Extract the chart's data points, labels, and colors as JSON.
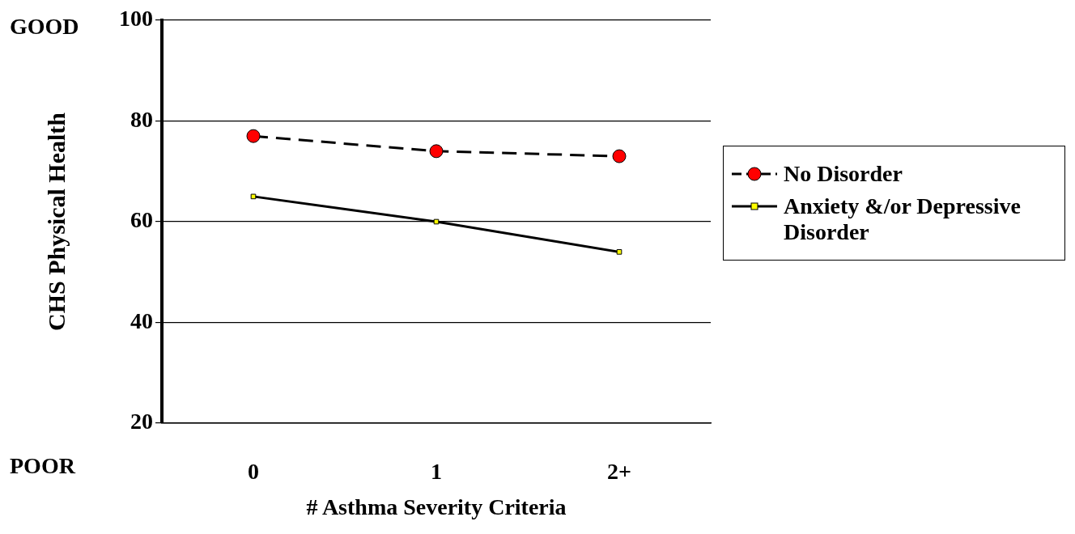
{
  "chart_data": {
    "type": "line",
    "xlabel": "# Asthma Severity Criteria",
    "ylabel": "CHS Physical Health",
    "categories": [
      "0",
      "1",
      "2+"
    ],
    "series": [
      {
        "name": "No Disorder",
        "color": "#ff0000",
        "values": [
          77,
          74,
          73
        ],
        "marker": "circle",
        "line_style": "dashed"
      },
      {
        "name": "Anxiety &/or Depressive Disorder",
        "color": "#ffff00",
        "values": [
          65,
          60,
          54
        ],
        "marker": "square",
        "line_style": "solid"
      }
    ],
    "ylim": [
      20,
      100
    ],
    "yticks": [
      20,
      40,
      60,
      80,
      100
    ],
    "grid": "y",
    "legend": "right",
    "annotations": [
      "GOOD",
      "POOR"
    ]
  }
}
